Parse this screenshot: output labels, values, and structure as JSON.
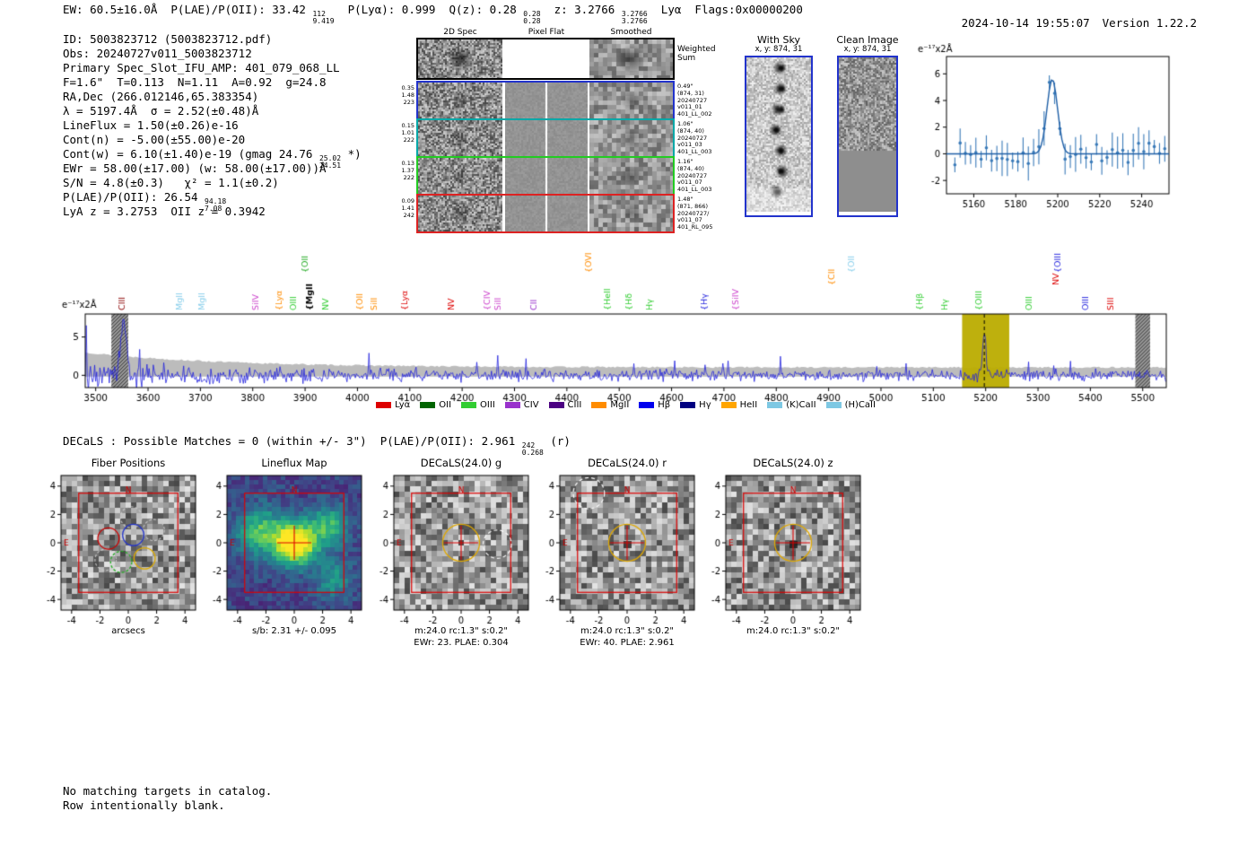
{
  "header": {
    "tokens": [
      {
        "t": "EW: 60.5±16.0Å  P(LAE)/P(OII): 33.42 "
      },
      {
        "hi": "112",
        "lo": "9.419"
      },
      {
        "t": "  P(Lyα): 0.999  Q(z): 0.28 "
      },
      {
        "hi": "0.28",
        "lo": "0.28"
      },
      {
        "t": "  z: 3.2766 "
      },
      {
        "hi": "3.2766",
        "lo": "3.2766"
      },
      {
        "t": "  Lyα  Flags:0x00000200"
      }
    ],
    "datetime": "2024-10-14 19:55:07",
    "version": "Version 1.22.2"
  },
  "info": {
    "lines": [
      [
        {
          "t": "ID: 5003823712 (5003823712.pdf)"
        }
      ],
      [
        {
          "t": "Obs: 20240727v011_5003823712"
        }
      ],
      [
        {
          "t": "Primary Spec_Slot_IFU_AMP: 401_079_068_LL"
        }
      ],
      [
        {
          "t": "F=1.6\"  T=0.113  N=1.11  A=0.92  g=24.8"
        }
      ],
      [
        {
          "t": "RA,Dec (266.012146,65.383354)"
        }
      ],
      [
        {
          "t": "λ = 5197.4Å  σ = 2.52(±0.48)Å"
        }
      ],
      [
        {
          "t": "LineFlux = 1.50(±0.26)e-16"
        }
      ],
      [
        {
          "t": "Cont(n) = -5.00(±55.00)e-20"
        }
      ],
      [
        {
          "t": "Cont(w) = 6.10(±1.40)e-19 (gmag 24.76 "
        },
        {
          "hi": "25.02",
          "lo": "24.51"
        },
        {
          "t": " *)"
        }
      ],
      [
        {
          "t": "EWr = 58.00(±17.00) (w: 58.00(±17.00))Å"
        }
      ],
      [
        {
          "t": "S/N = 4.8(±0.3)   χ² = 1.1(±0.2)"
        }
      ],
      [
        {
          "t": "P(LAE)/P(OII): 26.54 "
        },
        {
          "hi": "94.18",
          "lo": "7.08"
        }
      ],
      [
        {
          "t": "LyA z = 3.2753  OII z = 0.3942"
        }
      ]
    ]
  },
  "cutouts2d": {
    "col_headers": [
      "2D Spec",
      "Pixel Flat",
      "Smoothed"
    ],
    "rows": [
      {
        "color": "#000000",
        "left": [],
        "right": [
          "Weighted",
          "Sum"
        ]
      },
      {
        "color": "#2233cc",
        "left": [
          "0.35",
          "1.48",
          "223"
        ],
        "right": [
          "0.49\"",
          "(874, 31)",
          "20240727",
          "v011_01",
          "401_LL_002"
        ]
      },
      {
        "color": "#00a8a8",
        "left": [
          "0.15",
          "1.01",
          "222"
        ],
        "right": [
          "1.06\"",
          "(874, 40)",
          "20240727",
          "v011_03",
          "401_LL_003"
        ]
      },
      {
        "color": "#22cc22",
        "left": [
          "0.13",
          "1.37",
          "222"
        ],
        "right": [
          "1.16\"",
          "(874, 40)",
          "20240727",
          "v011_07",
          "401_LL_003"
        ]
      },
      {
        "color": "#dd2222",
        "left": [
          "0.09",
          "1.41",
          "242"
        ],
        "right": [
          "1.48\"",
          "(871, 866)",
          "20240727/",
          "v011_07",
          "401_RL_095"
        ]
      }
    ]
  },
  "sky_panels": {
    "with_sky": {
      "title": "With Sky",
      "coords": "x, y: 874, 31"
    },
    "clean": {
      "title": "Clean Image",
      "coords": "x, y: 874, 31"
    }
  },
  "decals_header": {
    "tokens": [
      {
        "t": "DECaLS : Possible Matches = 0 (within +/- 3\")  P(LAE)/P(OII): 2.961 "
      },
      {
        "hi": "242",
        "lo": "0.268"
      },
      {
        "t": " (r)"
      }
    ]
  },
  "footer": {
    "lines": [
      "No matching targets in catalog.",
      "Row intentionally blank."
    ]
  },
  "chart_data": [
    {
      "id": "zoom_spectrum",
      "type": "scatter",
      "ylabel": "e⁻¹⁷x2Å",
      "xlim": [
        5147,
        5253
      ],
      "ylim": [
        -3,
        7.3
      ],
      "xticks": [
        5160,
        5180,
        5200,
        5220,
        5240
      ],
      "yticks": [
        -2,
        0,
        2,
        4,
        6
      ],
      "gaussian": {
        "center": 5197.4,
        "sigma": 2.52,
        "amplitude": 5.6
      },
      "point_color": "#3a7ab8",
      "fit_color": "#1f5fa6"
    },
    {
      "id": "full_spectrum",
      "type": "line",
      "ylabel": "e⁻¹⁷x2Å",
      "xlim": [
        3480,
        5545
      ],
      "ylim": [
        -1.6,
        8
      ],
      "xticks": [
        3500,
        3600,
        3700,
        3800,
        3900,
        4000,
        4100,
        4200,
        4300,
        4400,
        4500,
        4600,
        4700,
        4800,
        4900,
        5000,
        5100,
        5200,
        5300,
        5400,
        5500
      ],
      "yticks": [
        0,
        5
      ],
      "emission_line": {
        "wavelength": 5197.4,
        "amplitude": 6.1,
        "sigma": 3
      },
      "extra_spike": {
        "wavelength": 3553,
        "amplitude": 7.2,
        "sigma": 5
      },
      "highlight_band": {
        "x0": 5155,
        "x1": 5245,
        "color": "rgba(186,172,0,0.95)"
      },
      "masked_bands": [
        {
          "x0": 3530,
          "x1": 3562
        },
        {
          "x0": 5486,
          "x1": 5514
        }
      ],
      "line_color": "#2222dd",
      "err_color": "#bcbcbc",
      "line_labels": [
        {
          "label": "CIII",
          "wavelength": 3551,
          "color": "#8b0000",
          "level": 0,
          "brace": false
        },
        {
          "label": "MgII",
          "wavelength": 3660,
          "color": "#87ceeb",
          "level": 0,
          "brace": false
        },
        {
          "label": "MgII",
          "wavelength": 3703,
          "color": "#87ceeb",
          "level": 0,
          "brace": false
        },
        {
          "label": "SiIV",
          "wavelength": 3806,
          "color": "#cc44cc",
          "level": 0,
          "brace": false
        },
        {
          "label": "Lyα",
          "wavelength": 3850,
          "color": "#ff8c00",
          "level": 0,
          "brace": true
        },
        {
          "label": "OIII",
          "wavelength": 3878,
          "color": "#32cd32",
          "level": 0,
          "brace": false
        },
        {
          "label": "OII",
          "wavelength": 3900,
          "color": "#22aa22",
          "level": 2,
          "brace": true
        },
        {
          "label": "MgII",
          "wavelength": 3908,
          "color": "#000000",
          "level": 0,
          "brace": true,
          "bold": true
        },
        {
          "label": "NV",
          "wavelength": 3940,
          "color": "#32cd32",
          "level": 0,
          "brace": false
        },
        {
          "label": "OII",
          "wavelength": 4004,
          "color": "#ff8c00",
          "level": 0,
          "brace": true
        },
        {
          "label": "SiII",
          "wavelength": 4032,
          "color": "#ff8c00",
          "level": 0,
          "brace": false
        },
        {
          "label": "Lyα",
          "wavelength": 4090,
          "color": "#dd0000",
          "level": 0,
          "brace": true
        },
        {
          "label": "NV",
          "wavelength": 4180,
          "color": "#dd0000",
          "level": 0,
          "brace": false
        },
        {
          "label": "CIV",
          "wavelength": 4247,
          "color": "#cc44cc",
          "level": 0,
          "brace": true
        },
        {
          "label": "SiII",
          "wavelength": 4269,
          "color": "#cc44cc",
          "level": 0,
          "brace": false
        },
        {
          "label": "CII",
          "wavelength": 4337,
          "color": "#9932cc",
          "level": 0,
          "brace": false
        },
        {
          "label": "OVI",
          "wavelength": 4441,
          "color": "#ff8c00",
          "level": 2,
          "brace": true
        },
        {
          "label": "HeII",
          "wavelength": 4478,
          "color": "#32cd32",
          "level": 0,
          "brace": true
        },
        {
          "label": "Hδ",
          "wavelength": 4519,
          "color": "#32cd32",
          "level": 0,
          "brace": true
        },
        {
          "label": "Hγ",
          "wavelength": 4558,
          "color": "#32cd32",
          "level": 0,
          "brace": false
        },
        {
          "label": "Hγ",
          "wavelength": 4662,
          "color": "#2222dd",
          "level": 0,
          "brace": true
        },
        {
          "label": "SiIV",
          "wavelength": 4722,
          "color": "#cc44cc",
          "level": 0,
          "brace": true
        },
        {
          "label": "CII",
          "wavelength": 4906,
          "color": "#ff8c00",
          "level": 1,
          "brace": true
        },
        {
          "label": "OII",
          "wavelength": 4944,
          "color": "#87ceeb",
          "level": 2,
          "brace": true
        },
        {
          "label": "Hβ",
          "wavelength": 5073,
          "color": "#32cd32",
          "level": 0,
          "brace": true
        },
        {
          "label": "Hγ",
          "wavelength": 5121,
          "color": "#32cd32",
          "level": 0,
          "brace": false
        },
        {
          "label": "OIII",
          "wavelength": 5186,
          "color": "#32cd32",
          "level": 0,
          "brace": true
        },
        {
          "label": "OIII",
          "wavelength": 5282,
          "color": "#32cd32",
          "level": 0,
          "brace": false
        },
        {
          "label": "NV",
          "wavelength": 5334,
          "color": "#dd0000",
          "level": 1,
          "brace": false
        },
        {
          "label": "OIII",
          "wavelength": 5338,
          "color": "#2222dd",
          "level": 2,
          "brace": true
        },
        {
          "label": "OIII",
          "wavelength": 5390,
          "color": "#2222dd",
          "level": 0,
          "brace": false
        },
        {
          "label": "SIII",
          "wavelength": 5438,
          "color": "#dd0000",
          "level": 0,
          "brace": false
        }
      ],
      "legend": [
        {
          "label": "Lyα",
          "color": "#dd0000"
        },
        {
          "label": "OII",
          "color": "#006400"
        },
        {
          "label": "OIII",
          "color": "#32cd32"
        },
        {
          "label": "CIV",
          "color": "#9932cc"
        },
        {
          "label": "CIII",
          "color": "#4b0082"
        },
        {
          "label": "MgII",
          "color": "#ff8c00"
        },
        {
          "label": "Hβ",
          "color": "#0000ee"
        },
        {
          "label": "Hγ",
          "color": "#000080"
        },
        {
          "label": "HeII",
          "color": "#ffa500"
        },
        {
          "label": "(K)CaII",
          "color": "#7ec8e3"
        },
        {
          "label": "(H)CaII",
          "color": "#7ec8e3"
        }
      ]
    },
    {
      "id": "fiber_positions",
      "type": "heatmap",
      "title": "Fiber Positions",
      "xlabel": "arcsecs",
      "xlim": [
        -4.75,
        4.75
      ],
      "xticks": [
        -4,
        -2,
        0,
        2,
        4
      ],
      "yticks": [
        -4,
        -2,
        0,
        2,
        4
      ],
      "fibers": [
        {
          "color": "#cc0000",
          "x": -1.4,
          "y": 0.3,
          "r": 0.75,
          "dash": false
        },
        {
          "color": "#2233cc",
          "x": 0.35,
          "y": 0.55,
          "r": 0.75,
          "dash": false
        },
        {
          "color": "#22aa22",
          "x": -0.5,
          "y": -1.35,
          "r": 0.75,
          "dash": true
        },
        {
          "color": "#ddaa00",
          "x": 1.15,
          "y": -1.1,
          "r": 0.75,
          "dash": false
        }
      ],
      "compass": {
        "n": "N",
        "e": "E",
        "color": "#cc0000"
      }
    },
    {
      "id": "lineflux_map",
      "type": "heatmap",
      "title": "Lineflux Map",
      "caption": "s/b: 2.31 +/- 0.095",
      "colormap": "viridis",
      "xlim": [
        -4.75,
        4.75
      ],
      "xticks": [
        -4,
        -2,
        0,
        2,
        4
      ],
      "yticks": [
        -4,
        -2,
        0,
        2,
        4
      ],
      "blobs": [
        {
          "x": 0.1,
          "y": -0.1,
          "sigma": 1.05,
          "amp": 1.0
        },
        {
          "x": -2.4,
          "y": 0.8,
          "sigma": 1.2,
          "amp": 0.5
        },
        {
          "x": 2.5,
          "y": 1.2,
          "sigma": 1.0,
          "amp": 0.45
        },
        {
          "x": 2.8,
          "y": -2.6,
          "sigma": 0.9,
          "amp": 0.35
        }
      ],
      "compass": {
        "n": "N",
        "e": "E",
        "color": "#cc0000"
      }
    },
    {
      "id": "decals_g",
      "type": "heatmap",
      "title": "DECaLS(24.0) g",
      "caption": "m:24.0 rc:1.3\"  s:0.2\"",
      "caption2": "EWr: 23. PLAE: 0.304",
      "xlim": [
        -4.75,
        4.75
      ],
      "xticks": [
        -4,
        -2,
        0,
        2,
        4
      ],
      "yticks": [
        -4,
        -2,
        0,
        2,
        4
      ],
      "aperture": {
        "x": 0,
        "y": 0,
        "r": 1.3,
        "color": "#e0a800"
      },
      "neighbor": {
        "x": 2.55,
        "y": -0.1,
        "r": 1.0
      },
      "compass": {
        "n": "N",
        "e": "E",
        "color": "#cc0000"
      }
    },
    {
      "id": "decals_r",
      "type": "heatmap",
      "title": "DECaLS(24.0) r",
      "caption": "m:24.0 rc:1.3\"  s:0.2\"",
      "caption2": "EWr: 40. PLAE: 2.961",
      "xlim": [
        -4.75,
        4.75
      ],
      "xticks": [
        -4,
        -2,
        0,
        2,
        4
      ],
      "yticks": [
        -4,
        -2,
        0,
        2,
        4
      ],
      "aperture": {
        "x": 0,
        "y": 0,
        "r": 1.3,
        "color": "#e0a800"
      },
      "neighbor": {
        "x": -2.7,
        "y": 3.5,
        "r": 1.1
      },
      "compass": {
        "n": "N",
        "e": "E",
        "color": "#cc0000"
      }
    },
    {
      "id": "decals_z",
      "type": "heatmap",
      "title": "DECaLS(24.0) z",
      "caption": "m:24.0 rc:1.3\"  s:0.2\"",
      "xlim": [
        -4.75,
        4.75
      ],
      "xticks": [
        -4,
        -2,
        0,
        2,
        4
      ],
      "yticks": [
        -4,
        -2,
        0,
        2,
        4
      ],
      "aperture": {
        "x": 0,
        "y": 0,
        "r": 1.3,
        "color": "#e0a800"
      },
      "compass": {
        "n": "N",
        "e": "E",
        "color": "#cc0000"
      }
    }
  ]
}
